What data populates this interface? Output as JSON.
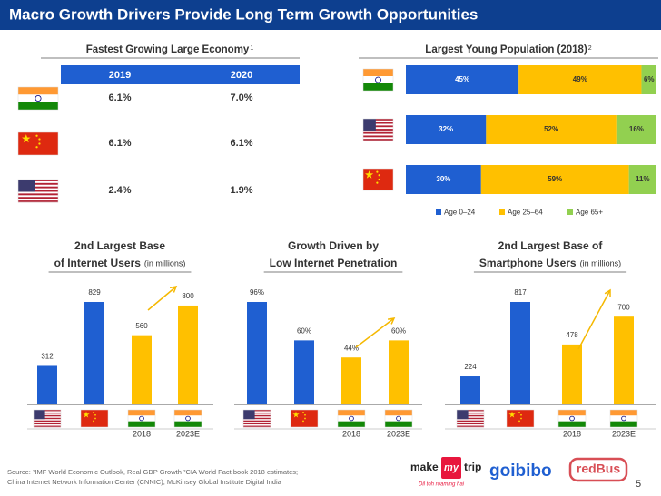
{
  "title": "Macro Growth Drivers Provide Long Term Growth Opportunities",
  "table": {
    "title": "Fastest Growing Large Economy",
    "title_note": "1",
    "columns": [
      "2019",
      "2020"
    ],
    "rows": [
      [
        "6.1%",
        "7.0%"
      ],
      [
        "6.1%",
        "6.1%"
      ],
      [
        "2.4%",
        "1.9%"
      ]
    ]
  },
  "chart_data": [
    {
      "type": "barh",
      "stacked": true,
      "title": "Largest Young Population (2018)",
      "title_note": "2",
      "categories": [
        null,
        null,
        null
      ],
      "legend": "bottom",
      "series": [
        {
          "name": "Age 0–24",
          "color": "#1f5fd1",
          "values": [
            45,
            32,
            30
          ],
          "value_labels": [
            "45%",
            "32%",
            "30%"
          ]
        },
        {
          "name": "Age 25–64",
          "color": "#ffc000",
          "values": [
            49,
            52,
            59
          ],
          "value_labels": [
            "49%",
            "52%",
            "59%"
          ]
        },
        {
          "name": "Age 65+",
          "color": "#92d050",
          "values": [
            6,
            16,
            11
          ],
          "value_labels": [
            "6%",
            "16%",
            "11%"
          ]
        }
      ]
    },
    {
      "type": "bar",
      "title_lines": [
        "2nd Largest Base",
        "of Internet Users"
      ],
      "title_note": "(in millions)",
      "categories": [
        null,
        null,
        "2018",
        "2023E"
      ],
      "values": [
        312,
        829,
        560,
        800
      ],
      "colors": [
        "#1f5fd1",
        "#1f5fd1",
        "#ffc000",
        "#ffc000"
      ]
    },
    {
      "type": "bar",
      "title_lines": [
        "Growth Driven by",
        "Low Internet Penetration"
      ],
      "categories": [
        null,
        null,
        "2018",
        "2023E"
      ],
      "values": [
        96,
        60,
        44,
        60
      ],
      "value_labels": [
        "96%",
        "60%",
        "44%",
        "60%"
      ],
      "colors": [
        "#1f5fd1",
        "#1f5fd1",
        "#ffc000",
        "#ffc000"
      ]
    },
    {
      "type": "bar",
      "title_lines": [
        "2nd Largest Base of",
        "Smartphone Users"
      ],
      "title_note": "(in millions)",
      "categories": [
        null,
        null,
        "2018",
        "2023E"
      ],
      "values": [
        224,
        817,
        478,
        700
      ],
      "colors": [
        "#1f5fd1",
        "#1f5fd1",
        "#ffc000",
        "#ffc000"
      ]
    }
  ],
  "footer": {
    "source_lines": [
      "Source: ¹IMF World Economic Outlook, Real GDP Growth  ²CIA World Fact book 2018 estimates;",
      "China Internet Network Information Center (CNNIC), McKinsey Global Institute Digital India"
    ],
    "page_number": "5",
    "logos": {
      "makemytrip_left": "make",
      "makemytrip_my": "my",
      "makemytrip_right": "trip",
      "makemytrip_tagline": "Dil toh roaming hai",
      "goibibo": "goibibo",
      "redbus": "redBus"
    }
  }
}
